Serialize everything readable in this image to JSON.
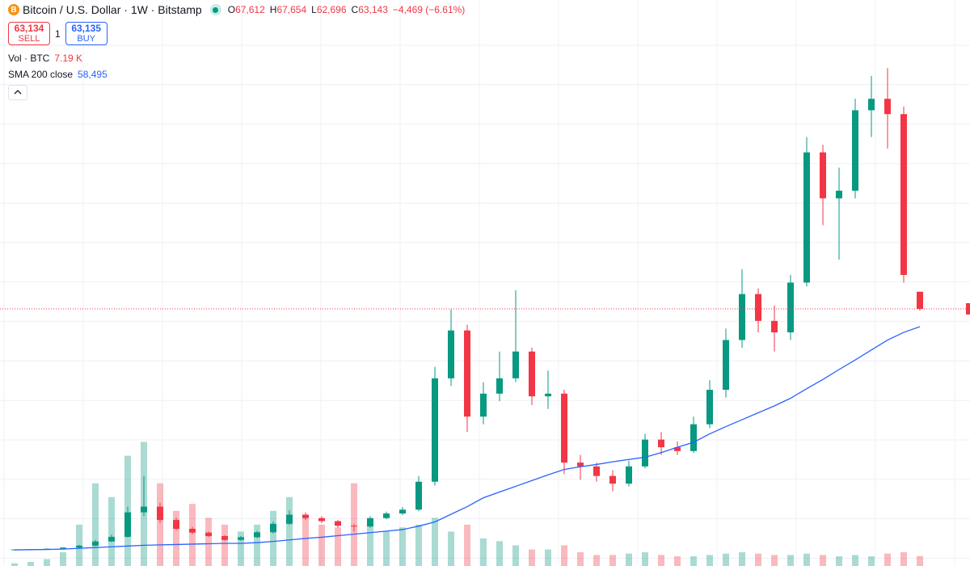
{
  "header": {
    "symbol": "Bitcoin / U.S. Dollar · 1W · Bitstamp",
    "open": {
      "prefix": "O",
      "value": 67612,
      "label": "67,612"
    },
    "high": {
      "prefix": "H",
      "value": 67654,
      "label": "67,654"
    },
    "low": {
      "prefix": "L",
      "value": 62696,
      "label": "62,696"
    },
    "close": {
      "prefix": "C",
      "value": 63143,
      "label": "63,143"
    },
    "change": "−4,469 (−6.61%)",
    "sell": {
      "price": {
        "value": 63134,
        "label": "63,134"
      },
      "label": "SELL"
    },
    "quantity": "1",
    "buy": {
      "price": {
        "value": 63135,
        "label": "63,135"
      },
      "label": "BUY"
    },
    "volume_legend": {
      "name": "Vol · BTC",
      "value": {
        "value": 7.19,
        "label": "7.19 K"
      }
    },
    "sma_legend": {
      "name": "SMA 200 close",
      "value": {
        "value": 58495,
        "label": "58,495"
      }
    }
  },
  "chart_data": {
    "type": "candlestick",
    "up_color": "#089981",
    "down_color": "#f23645",
    "ylim": [
      0,
      140000
    ],
    "open": [
      250,
      300,
      350,
      500,
      800,
      1300,
      2400,
      3600,
      10000,
      11500,
      8000,
      5700,
      4700,
      3800,
      2800,
      3500,
      4800,
      7000,
      9400,
      8500,
      7700,
      6500,
      6300,
      8500,
      9700,
      10700,
      18000,
      45000,
      57500,
      35000,
      41000,
      45000,
      52000,
      40300,
      41000,
      23000,
      22000,
      19500,
      17500,
      22000,
      29000,
      27000,
      26000,
      33000,
      42000,
      55000,
      67000,
      60000,
      57000,
      70000,
      104000,
      92000,
      94000,
      115000,
      118000,
      114000,
      67612
    ],
    "high": [
      340,
      380,
      560,
      900,
      1500,
      2800,
      4200,
      11500,
      19500,
      12500,
      8600,
      6200,
      5000,
      4000,
      3800,
      5200,
      7600,
      10500,
      10000,
      9000,
      8000,
      7000,
      9000,
      10200,
      11400,
      19500,
      48000,
      63000,
      59000,
      44000,
      52000,
      68000,
      53000,
      47000,
      42000,
      25000,
      23000,
      21000,
      23500,
      30500,
      31000,
      28500,
      35000,
      44500,
      58000,
      73500,
      68500,
      64000,
      72000,
      108000,
      106000,
      100000,
      118000,
      124000,
      126000,
      116000,
      67654
    ],
    "low": [
      230,
      280,
      330,
      470,
      750,
      1200,
      2200,
      3400,
      9000,
      7200,
      5300,
      4300,
      3500,
      2600,
      2600,
      3300,
      4500,
      6700,
      8000,
      7200,
      6000,
      5000,
      6000,
      8200,
      9300,
      10300,
      17000,
      43000,
      31000,
      33000,
      39000,
      44000,
      38000,
      37000,
      20000,
      18500,
      18000,
      15500,
      16800,
      21500,
      25000,
      25000,
      25500,
      32000,
      40000,
      53000,
      57000,
      52000,
      55000,
      69000,
      85000,
      76000,
      92000,
      108000,
      105000,
      70000,
      62696
    ],
    "close": [
      300,
      350,
      500,
      800,
      1300,
      2400,
      3600,
      10000,
      11500,
      8000,
      5700,
      4700,
      3800,
      2800,
      3500,
      4800,
      7000,
      9400,
      8500,
      7700,
      6500,
      6300,
      8500,
      9700,
      10700,
      18000,
      45000,
      57500,
      35000,
      41000,
      45000,
      52000,
      40300,
      41000,
      23000,
      22000,
      19500,
      17500,
      22000,
      29000,
      27000,
      26000,
      33000,
      42000,
      55000,
      67000,
      60000,
      57000,
      70000,
      104000,
      92000,
      94000,
      115000,
      118000,
      114000,
      72000,
      63143
    ],
    "sma": {
      "name": "SMA 200 close",
      "color": "#2962ff",
      "values": [
        200,
        250,
        300,
        400,
        600,
        800,
        1000,
        1200,
        1400,
        1500,
        1600,
        1700,
        1800,
        1900,
        1900,
        2100,
        2400,
        2800,
        3200,
        3500,
        3900,
        4300,
        4700,
        5100,
        5500,
        6400,
        7500,
        9500,
        11500,
        13800,
        15300,
        16800,
        18300,
        19800,
        21200,
        21900,
        22500,
        23200,
        23800,
        24400,
        25600,
        27000,
        28300,
        30500,
        32400,
        34200,
        36000,
        37800,
        39800,
        42300,
        44700,
        47300,
        49800,
        52400,
        55000,
        57000,
        58495
      ]
    },
    "volume": {
      "name": "Vol · BTC",
      "axis": "y2",
      "values": [
        2,
        3,
        5,
        10,
        30,
        60,
        50,
        80,
        90,
        60,
        40,
        45,
        35,
        30,
        25,
        30,
        40,
        50,
        35,
        30,
        28,
        60,
        30,
        25,
        28,
        30,
        35,
        25,
        30,
        20,
        18,
        15,
        12,
        12,
        15,
        10,
        8,
        8,
        9,
        10,
        8,
        7,
        7,
        8,
        9,
        10,
        9,
        8,
        8,
        9,
        8,
        7,
        8,
        7,
        9,
        10,
        7.19
      ]
    },
    "y2lim": [
      0,
      400
    ]
  }
}
